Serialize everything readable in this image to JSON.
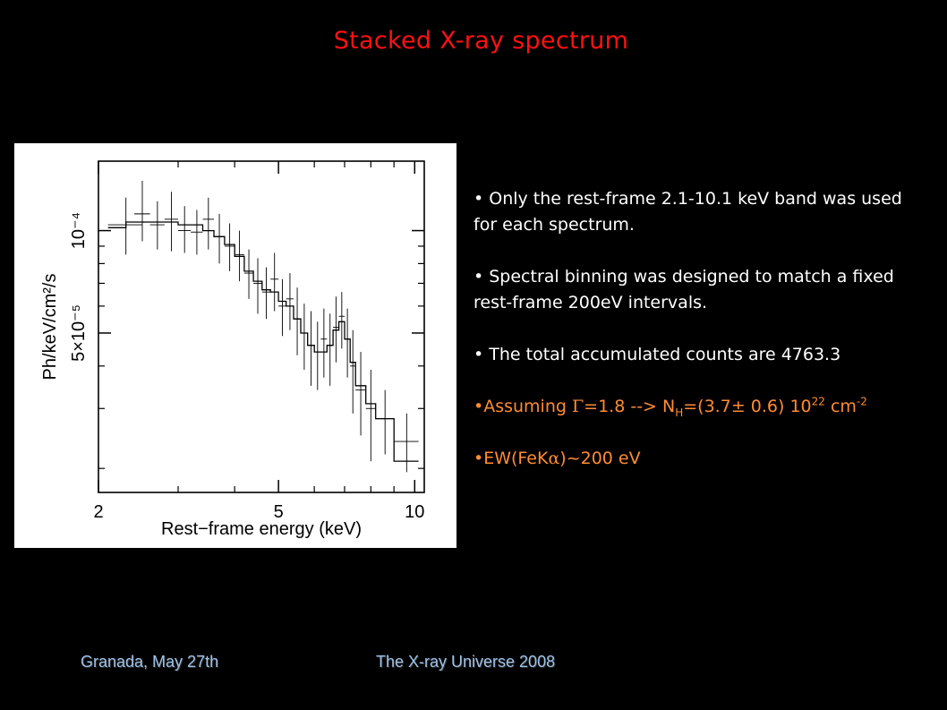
{
  "slide": {
    "title": "Stacked X-ray spectrum",
    "bullets": [
      "• Only the rest-frame 2.1-10.1 keV band was used for each spectrum.",
      "• Spectral binning was designed to match a fixed rest-frame 200eV intervals.",
      "• The total accumulated counts are 4763.3"
    ],
    "assumption": {
      "prefix": "•Assuming ",
      "gamma_symbol": "Γ",
      "gamma_text": "=1.8 --> N",
      "nh_sub": "H",
      "nh_value": "=(3.7± 0.6) 10",
      "exp": "22",
      "unit": " cm",
      "unit_exp": "-2"
    },
    "ew": {
      "prefix": "•EW(FeK",
      "alpha_symbol": "α",
      "suffix": ")~200 eV"
    },
    "colors": {
      "title": "#ff1111",
      "orange_text": "#ff8c33",
      "footer": "#9ec3ea"
    }
  },
  "footer": {
    "left": "Granada, May 27th",
    "right": "The X-ray Universe 2008"
  },
  "chart_data": {
    "type": "line",
    "title": "",
    "xlabel": "Rest−frame energy (keV)",
    "ylabel": "Ph/keV/cm²/s",
    "xscale": "log",
    "yscale": "log",
    "xlim": [
      2,
      10.5
    ],
    "ylim": [
      1.7e-05,
      0.00016
    ],
    "x_ticks": [
      {
        "value": 2,
        "label": "2"
      },
      {
        "value": 5,
        "label": "5"
      },
      {
        "value": 10,
        "label": "10"
      }
    ],
    "x_minor_ticks": [
      3,
      4,
      6,
      7,
      8,
      9
    ],
    "y_ticks": [
      {
        "value": 0.0001,
        "label": "10⁻⁴"
      },
      {
        "value": 5e-05,
        "label": "5×10⁻⁵"
      }
    ],
    "y_minor_ticks": [
      2e-05,
      3e-05,
      4e-05,
      6e-05,
      7e-05,
      8e-05,
      9e-05
    ],
    "series": [
      {
        "style": "data-crosses",
        "points": [
          {
            "x": 2.3,
            "xerr": [
              2.1,
              2.5
            ],
            "y": 0.000104,
            "yerr": [
              8.5e-05,
              0.000125
            ]
          },
          {
            "x": 2.5,
            "xerr": [
              2.4,
              2.6
            ],
            "y": 0.000112,
            "yerr": [
              9.3e-05,
              0.00014
            ]
          },
          {
            "x": 2.7,
            "xerr": [
              2.6,
              2.8
            ],
            "y": 0.000104,
            "yerr": [
              8.8e-05,
              0.000122
            ]
          },
          {
            "x": 2.9,
            "xerr": [
              2.8,
              3.0
            ],
            "y": 0.000108,
            "yerr": [
              8.7e-05,
              0.00013
            ]
          },
          {
            "x": 3.1,
            "xerr": [
              3.0,
              3.2
            ],
            "y": 0.0001,
            "yerr": [
              8.6e-05,
              0.000118
            ]
          },
          {
            "x": 3.3,
            "xerr": [
              3.2,
              3.4
            ],
            "y": 9.9e-05,
            "yerr": [
              8.5e-05,
              0.000115
            ]
          },
          {
            "x": 3.5,
            "xerr": [
              3.4,
              3.6
            ],
            "y": 0.000108,
            "yerr": [
              8.8e-05,
              0.000125
            ]
          },
          {
            "x": 3.7,
            "xerr": [
              3.6,
              3.8
            ],
            "y": 9.6e-05,
            "yerr": [
              8e-05,
              0.000112
            ]
          },
          {
            "x": 3.9,
            "xerr": [
              3.8,
              4.0
            ],
            "y": 9e-05,
            "yerr": [
              7.6e-05,
              0.000105
            ]
          },
          {
            "x": 4.1,
            "xerr": [
              4.0,
              4.2
            ],
            "y": 8.5e-05,
            "yerr": [
              7.1e-05,
              0.0001
            ]
          },
          {
            "x": 4.3,
            "xerr": [
              4.2,
              4.4
            ],
            "y": 7.5e-05,
            "yerr": [
              6.3e-05,
              8.8e-05
            ]
          },
          {
            "x": 4.5,
            "xerr": [
              4.4,
              4.6
            ],
            "y": 7e-05,
            "yerr": [
              5.7e-05,
              8.3e-05
            ]
          },
          {
            "x": 4.7,
            "xerr": [
              4.6,
              4.8
            ],
            "y": 6.6e-05,
            "yerr": [
              5.5e-05,
              7.8e-05
            ]
          },
          {
            "x": 4.9,
            "xerr": [
              4.8,
              5.0
            ],
            "y": 7.2e-05,
            "yerr": [
              5.8e-05,
              8.6e-05
            ]
          },
          {
            "x": 5.1,
            "xerr": [
              5.0,
              5.2
            ],
            "y": 6e-05,
            "yerr": [
              4.9e-05,
              7.2e-05
            ]
          },
          {
            "x": 5.3,
            "xerr": [
              5.2,
              5.4
            ],
            "y": 6.3e-05,
            "yerr": [
              5.1e-05,
              7.5e-05
            ]
          },
          {
            "x": 5.5,
            "xerr": [
              5.4,
              5.6
            ],
            "y": 5.5e-05,
            "yerr": [
              4.3e-05,
              6.8e-05
            ]
          },
          {
            "x": 5.7,
            "xerr": [
              5.6,
              5.8
            ],
            "y": 5e-05,
            "yerr": [
              3.9e-05,
              6.1e-05
            ]
          },
          {
            "x": 5.9,
            "xerr": [
              5.8,
              6.0
            ],
            "y": 4.6e-05,
            "yerr": [
              3.5e-05,
              5.8e-05
            ]
          },
          {
            "x": 6.1,
            "xerr": [
              6.0,
              6.2
            ],
            "y": 4.4e-05,
            "yerr": [
              3.4e-05,
              5.4e-05
            ]
          },
          {
            "x": 6.3,
            "xerr": [
              6.2,
              6.4
            ],
            "y": 4.8e-05,
            "yerr": [
              3.7e-05,
              5.9e-05
            ]
          },
          {
            "x": 6.5,
            "xerr": [
              6.4,
              6.6
            ],
            "y": 4.6e-05,
            "yerr": [
              3.5e-05,
              5.7e-05
            ]
          },
          {
            "x": 6.7,
            "xerr": [
              6.6,
              6.8
            ],
            "y": 5.2e-05,
            "yerr": [
              4.1e-05,
              6.4e-05
            ]
          },
          {
            "x": 6.9,
            "xerr": [
              6.8,
              7.0
            ],
            "y": 5.6e-05,
            "yerr": [
              4.5e-05,
              6.6e-05
            ]
          },
          {
            "x": 7.1,
            "xerr": [
              7.0,
              7.2
            ],
            "y": 4.8e-05,
            "yerr": [
              3.7e-05,
              5.9e-05
            ]
          },
          {
            "x": 7.3,
            "xerr": [
              7.2,
              7.4
            ],
            "y": 4e-05,
            "yerr": [
              2.9e-05,
              5.1e-05
            ]
          },
          {
            "x": 7.6,
            "xerr": [
              7.4,
              7.8
            ],
            "y": 3.4e-05,
            "yerr": [
              2.5e-05,
              4.4e-05
            ]
          },
          {
            "x": 8.0,
            "xerr": [
              7.8,
              8.2
            ],
            "y": 3e-05,
            "yerr": [
              2.1e-05,
              3.9e-05
            ]
          },
          {
            "x": 8.6,
            "xerr": [
              8.2,
              9.0
            ],
            "y": 2.8e-05,
            "yerr": [
              2.2e-05,
              3.4e-05
            ]
          },
          {
            "x": 9.6,
            "xerr": [
              9.0,
              10.2
            ],
            "y": 2.4e-05,
            "yerr": [
              1.95e-05,
              2.9e-05
            ]
          }
        ]
      },
      {
        "style": "model-histogram",
        "bins": [
          [
            2.1,
            2.3,
            0.000102
          ],
          [
            2.3,
            2.6,
            0.000106
          ],
          [
            2.6,
            3.0,
            0.000106
          ],
          [
            3.0,
            3.4,
            0.000104
          ],
          [
            3.4,
            3.6,
            0.0001
          ],
          [
            3.6,
            3.8,
            9.6e-05
          ],
          [
            3.8,
            4.0,
            9.1e-05
          ],
          [
            4.0,
            4.2,
            8.4e-05
          ],
          [
            4.2,
            4.4,
            7.6e-05
          ],
          [
            4.4,
            4.6,
            7.1e-05
          ],
          [
            4.6,
            4.8,
            6.7e-05
          ],
          [
            4.8,
            5.0,
            6.6e-05
          ],
          [
            5.0,
            5.2,
            6.2e-05
          ],
          [
            5.2,
            5.4,
            6e-05
          ],
          [
            5.4,
            5.6,
            5.5e-05
          ],
          [
            5.6,
            5.8,
            5e-05
          ],
          [
            5.8,
            6.0,
            4.6e-05
          ],
          [
            6.0,
            6.4,
            4.4e-05
          ],
          [
            6.4,
            6.6,
            4.6e-05
          ],
          [
            6.6,
            6.8,
            5.1e-05
          ],
          [
            6.8,
            7.0,
            5.4e-05
          ],
          [
            7.0,
            7.2,
            4.8e-05
          ],
          [
            7.2,
            7.4,
            4.1e-05
          ],
          [
            7.4,
            7.8,
            3.5e-05
          ],
          [
            7.8,
            8.2,
            3.1e-05
          ],
          [
            8.2,
            9.0,
            2.8e-05
          ],
          [
            9.0,
            10.2,
            2.1e-05
          ]
        ]
      }
    ]
  }
}
